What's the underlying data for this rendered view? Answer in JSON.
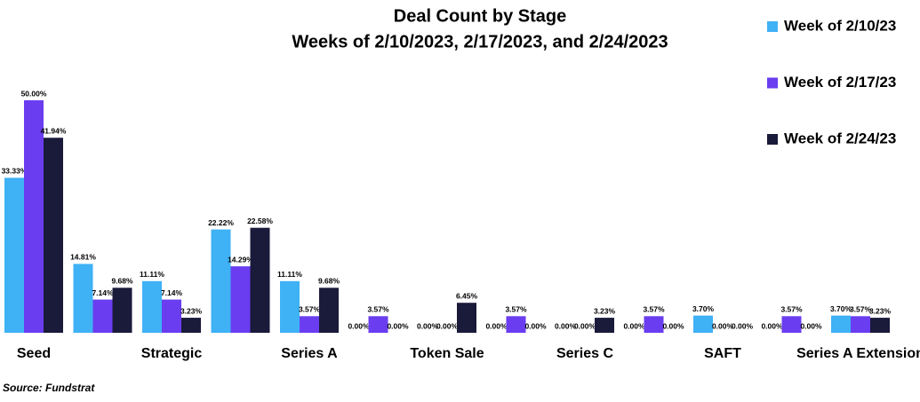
{
  "chart_data": {
    "type": "bar",
    "title": "Deal Count by Stage",
    "subtitle": "Weeks of 2/10/2023, 2/17/2023, and 2/24/2023",
    "source": "Source: Fundstrat",
    "categories": [
      "Seed",
      null,
      "Strategic",
      null,
      "Series A",
      null,
      "Token Sale",
      null,
      "Series C",
      null,
      "SAFT",
      null,
      "Series A Extension"
    ],
    "series": [
      {
        "name": "Week of 2/10/23",
        "color": "#3fb1f5",
        "values": [
          33.33,
          14.81,
          11.11,
          22.22,
          11.11,
          0,
          0,
          0,
          0,
          0,
          3.7,
          0,
          3.7
        ],
        "value_labels": [
          "33.33%",
          "14.81%",
          "11.11%",
          "22.22%",
          "11.11%",
          "0.00%",
          "0.00%",
          "0.00%",
          "0.00%",
          "0.00%",
          "3.70%",
          "0.00%",
          "3.70%"
        ]
      },
      {
        "name": "Week of 2/17/23",
        "color": "#6a3df0",
        "values": [
          50.0,
          7.14,
          7.14,
          14.29,
          3.57,
          3.57,
          0,
          3.57,
          0,
          3.57,
          0,
          3.57,
          3.57
        ],
        "value_labels": [
          "50.00%",
          "7.14%",
          "7.14%",
          "14.29%",
          "3.57%",
          "3.57%",
          "0.00%",
          "3.57%",
          "0.00%",
          "3.57%",
          "0.00%",
          "3.57%",
          "3.57%"
        ]
      },
      {
        "name": "Week of 2/24/23",
        "color": "#1a1a3a",
        "values": [
          41.94,
          9.68,
          3.23,
          22.58,
          9.68,
          0,
          6.45,
          0,
          3.23,
          0,
          0,
          0,
          3.23
        ],
        "value_labels": [
          "41.94%",
          "9.68%",
          "3.23%",
          "22.58%",
          "9.68%",
          "0.00%",
          "6.45%",
          "0.00%",
          "3.23%",
          "0.00%",
          "0.00%",
          "0.00%",
          "3.23%"
        ]
      }
    ],
    "ylim": [
      0,
      50
    ],
    "legend": "right"
  }
}
